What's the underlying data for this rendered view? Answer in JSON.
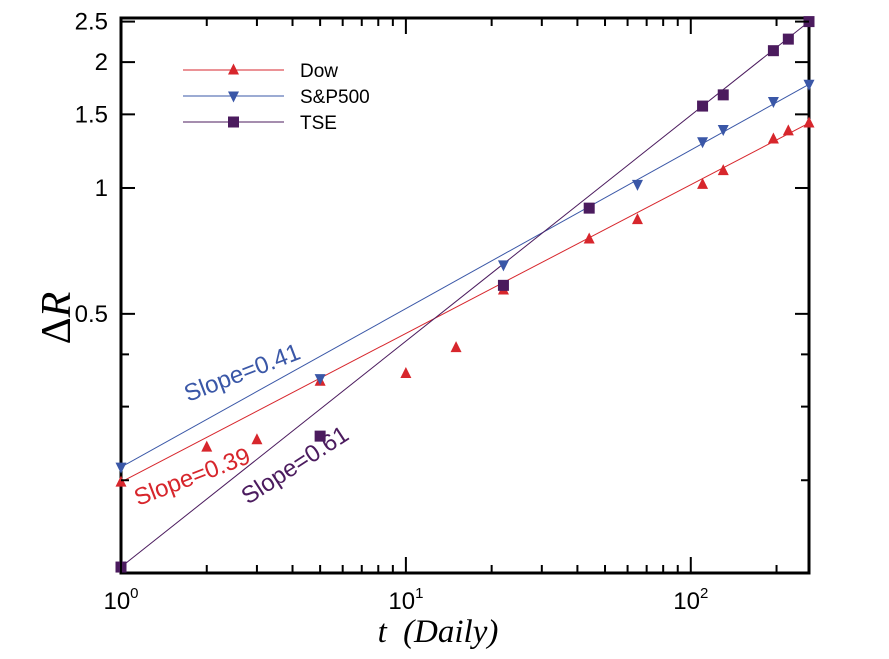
{
  "chart_data": {
    "type": "line",
    "x_scale": "log",
    "y_scale": "log",
    "xlim": [
      1,
      260
    ],
    "ylim": [
      0.12,
      2.55
    ],
    "xlabel_main": "t",
    "xlabel_paren": "(Daily)",
    "ylabel_delta": "Δ",
    "ylabel_var": "R",
    "x_ticks": [
      {
        "value": 1,
        "base": "10",
        "exp": "0"
      },
      {
        "value": 10,
        "base": "10",
        "exp": "1"
      },
      {
        "value": 100,
        "base": "10",
        "exp": "2"
      }
    ],
    "y_ticks": [
      {
        "value": 0.5,
        "label": "0.5"
      },
      {
        "value": 1,
        "label": "1"
      },
      {
        "value": 1.5,
        "label": "1.5"
      },
      {
        "value": 2,
        "label": "2"
      },
      {
        "value": 2.5,
        "label": "2.5"
      }
    ],
    "legend_position": "top-left",
    "series": [
      {
        "name": "Dow",
        "color": "#d7262c",
        "marker": "triangle-up",
        "points": [
          {
            "x": 1,
            "y": 0.198
          },
          {
            "x": 2,
            "y": 0.24
          },
          {
            "x": 3,
            "y": 0.25
          },
          {
            "x": 5,
            "y": 0.345
          },
          {
            "x": 10,
            "y": 0.36
          },
          {
            "x": 15,
            "y": 0.415
          },
          {
            "x": 22,
            "y": 0.57
          },
          {
            "x": 44,
            "y": 0.755
          },
          {
            "x": 65,
            "y": 0.84
          },
          {
            "x": 110,
            "y": 1.02
          },
          {
            "x": 130,
            "y": 1.1
          },
          {
            "x": 195,
            "y": 1.31
          },
          {
            "x": 220,
            "y": 1.37
          },
          {
            "x": 260,
            "y": 1.43
          }
        ],
        "fit": {
          "x": [
            1,
            260
          ],
          "y": [
            0.198,
            1.43
          ]
        },
        "slope_label": "Slope=0.39"
      },
      {
        "name": "S&P500",
        "color": "#3a57a7",
        "marker": "triangle-down",
        "points": [
          {
            "x": 1,
            "y": 0.215
          },
          {
            "x": 5,
            "y": 0.35
          },
          {
            "x": 22,
            "y": 0.655
          },
          {
            "x": 65,
            "y": 1.02
          },
          {
            "x": 110,
            "y": 1.29
          },
          {
            "x": 130,
            "y": 1.38
          },
          {
            "x": 195,
            "y": 1.61
          },
          {
            "x": 260,
            "y": 1.77
          }
        ],
        "fit": {
          "x": [
            1,
            260
          ],
          "y": [
            0.215,
            1.77
          ]
        },
        "slope_label": "Slope=0.41"
      },
      {
        "name": "TSE",
        "color": "#4b1b5e",
        "marker": "square",
        "points": [
          {
            "x": 1,
            "y": 0.124
          },
          {
            "x": 5,
            "y": 0.255
          },
          {
            "x": 22,
            "y": 0.585
          },
          {
            "x": 44,
            "y": 0.895
          },
          {
            "x": 110,
            "y": 1.57
          },
          {
            "x": 130,
            "y": 1.67
          },
          {
            "x": 195,
            "y": 2.13
          },
          {
            "x": 220,
            "y": 2.27
          },
          {
            "x": 260,
            "y": 2.5
          }
        ],
        "fit": {
          "x": [
            1,
            260
          ],
          "y": [
            0.124,
            2.5
          ]
        },
        "slope_label": "Slope=0.61"
      }
    ]
  }
}
